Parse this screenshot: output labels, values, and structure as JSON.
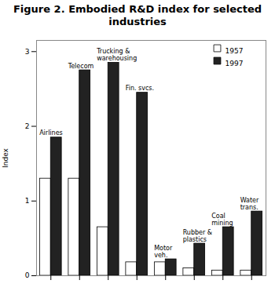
{
  "chart_data": {
    "type": "bar",
    "title": "Figure 2. Embodied R&D index for selected\nindustries",
    "ylabel": "Index",
    "categories": [
      "Airlines",
      "Telecom",
      "Trucking &\nwarehousing",
      "Fin. svcs.",
      "Motor\nveh.",
      "Rubber &\nplastics",
      "Coal\nmining",
      "Water\ntrans."
    ],
    "series": [
      {
        "name": "1957",
        "color": "#ffffff",
        "values": [
          1.3,
          1.3,
          0.65,
          0.18,
          0.18,
          0.1,
          0.07,
          0.07
        ]
      },
      {
        "name": "1997",
        "color": "#222222",
        "values": [
          1.85,
          2.75,
          2.85,
          2.45,
          0.22,
          0.43,
          0.65,
          0.86
        ]
      }
    ],
    "ylim": [
      0,
      3.15
    ],
    "yticks": [
      0,
      1,
      2,
      3
    ],
    "legend": "upper right",
    "tick_labels": "y"
  }
}
